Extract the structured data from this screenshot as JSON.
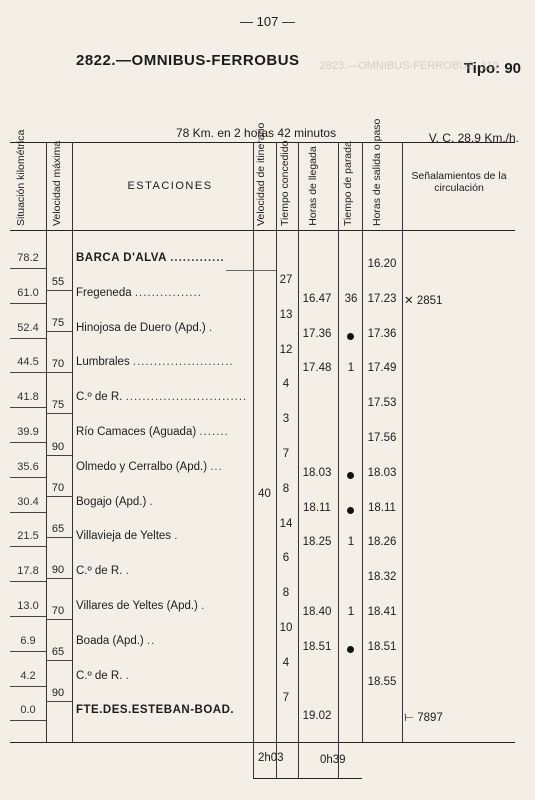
{
  "page_number": "— 107 —",
  "header": {
    "title": "2822.—OMNIBUS-FERROBUS",
    "tipo": "Tipo: 90",
    "distance": "78 Km. en 2 horas 42 minutos",
    "vc": "V. C. 28.9 Km./h."
  },
  "columns": {
    "km": "Situación kilométrica",
    "vel_max": "Velocidad máxima",
    "estaciones": "ESTACIONES",
    "vel_itin": "Velocidad de itinerario",
    "tiempo": "Tiempo concedido",
    "llegada": "Horas de llegada",
    "parada": "Tiempo de parada",
    "salida": "Horas de salida o paso",
    "senal": "Señalamientos de la circulación"
  },
  "stations": [
    {
      "km": "78.2",
      "name": "BARCA D'ALVA",
      "dots": ".............",
      "bold": true,
      "arr": "",
      "stop": "",
      "dep": "16.20",
      "sig": ""
    },
    {
      "km": "61.0",
      "name": "Fregeneda",
      "dots": "................",
      "bold": false,
      "arr": "16.47",
      "stop": "36",
      "dep": "17.23",
      "sig": "✕ 2851"
    },
    {
      "km": "52.4",
      "name": "Hinojosa de Duero (Apd.)",
      "dots": ".",
      "bold": false,
      "arr": "17.36",
      "stop": "●",
      "dep": "17.36",
      "sig": ""
    },
    {
      "km": "44.5",
      "name": "Lumbrales",
      "dots": "........................",
      "bold": false,
      "arr": "17.48",
      "stop": "1",
      "dep": "17.49",
      "sig": ""
    },
    {
      "km": "41.8",
      "name": "C.º de R.",
      "dots": ".............................",
      "bold": false,
      "arr": "",
      "stop": "",
      "dep": "17.53",
      "sig": ""
    },
    {
      "km": "39.9",
      "name": "Río Camaces (Aguada)",
      "dots": ".......",
      "bold": false,
      "arr": "",
      "stop": "",
      "dep": "17.56",
      "sig": ""
    },
    {
      "km": "35.6",
      "name": "Olmedo y Cerralbo (Apd.)",
      "dots": "...",
      "bold": false,
      "arr": "18.03",
      "stop": "●",
      "dep": "18.03",
      "sig": ""
    },
    {
      "km": "30.4",
      "name": "Bogajo (Apd.)",
      "dots": ".",
      "bold": false,
      "arr": "18.11",
      "stop": "●",
      "dep": "18.11",
      "sig": ""
    },
    {
      "km": "21.5",
      "name": "Villavieja de Yeltes",
      "dots": ".",
      "bold": false,
      "arr": "18.25",
      "stop": "1",
      "dep": "18.26",
      "sig": ""
    },
    {
      "km": "17.8",
      "name": "C.º de R.",
      "dots": ".",
      "bold": false,
      "arr": "",
      "stop": "",
      "dep": "18.32",
      "sig": ""
    },
    {
      "km": "13.0",
      "name": "Villares de Yeltes (Apd.)",
      "dots": ".",
      "bold": false,
      "arr": "18.40",
      "stop": "1",
      "dep": "18.41",
      "sig": ""
    },
    {
      "km": "6.9",
      "name": "Boada (Apd.)",
      "dots": "..",
      "bold": false,
      "arr": "18.51",
      "stop": "●",
      "dep": "18.51",
      "sig": ""
    },
    {
      "km": "4.2",
      "name": "C.º de R.",
      "dots": ".",
      "bold": false,
      "arr": "",
      "stop": "",
      "dep": "18.55",
      "sig": ""
    },
    {
      "km": "0.0",
      "name": "FTE.DES.ESTEBAN-BOAD.",
      "dots": "",
      "bold": true,
      "arr": "19.02",
      "stop": "",
      "dep": "",
      "sig": "⊢ 7897"
    }
  ],
  "speeds": [
    "55",
    "75",
    "70",
    "75",
    "90",
    "70",
    "65",
    "90",
    "70",
    "65",
    "90"
  ],
  "run_times": [
    "27",
    "13",
    "12",
    "4",
    "3",
    "7",
    "8",
    "14",
    "6",
    "8",
    "10",
    "4",
    "7"
  ],
  "itinerary_speed": "40",
  "totals": {
    "time": "2h03",
    "stop": "0h39"
  }
}
